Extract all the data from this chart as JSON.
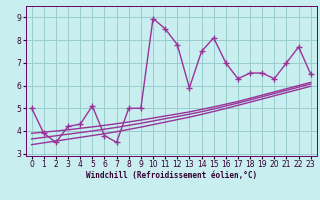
{
  "xlabel": "Windchill (Refroidissement éolien,°C)",
  "bg_color": "#c8eef0",
  "line_color": "#993399",
  "grid_color": "#99cccc",
  "x_data": [
    0,
    1,
    2,
    3,
    4,
    5,
    6,
    7,
    8,
    9,
    10,
    11,
    12,
    13,
    14,
    15,
    16,
    17,
    18,
    19,
    20,
    21,
    22,
    23
  ],
  "y_main": [
    5.0,
    3.9,
    3.5,
    4.2,
    4.3,
    5.1,
    3.8,
    3.5,
    5.0,
    5.0,
    8.95,
    8.5,
    7.8,
    5.9,
    7.5,
    8.1,
    7.0,
    6.3,
    6.55,
    6.55,
    6.3,
    7.0,
    7.7,
    6.5
  ],
  "y_line1": [
    3.9,
    3.95,
    4.0,
    4.05,
    4.12,
    4.18,
    4.25,
    4.32,
    4.4,
    4.48,
    4.57,
    4.66,
    4.75,
    4.84,
    4.95,
    5.06,
    5.18,
    5.3,
    5.44,
    5.58,
    5.72,
    5.86,
    6.0,
    6.14
  ],
  "y_line2": [
    3.65,
    3.72,
    3.79,
    3.86,
    3.93,
    4.0,
    4.08,
    4.16,
    4.25,
    4.34,
    4.44,
    4.54,
    4.64,
    4.74,
    4.85,
    4.97,
    5.1,
    5.23,
    5.37,
    5.51,
    5.65,
    5.79,
    5.93,
    6.07
  ],
  "y_line3": [
    3.4,
    3.48,
    3.56,
    3.64,
    3.72,
    3.8,
    3.88,
    3.97,
    4.07,
    4.17,
    4.28,
    4.39,
    4.5,
    4.61,
    4.73,
    4.86,
    4.99,
    5.13,
    5.27,
    5.41,
    5.55,
    5.69,
    5.83,
    5.97
  ],
  "ylim": [
    2.9,
    9.5
  ],
  "xlim": [
    -0.5,
    23.5
  ],
  "yticks": [
    3,
    4,
    5,
    6,
    7,
    8,
    9
  ],
  "xticks": [
    0,
    1,
    2,
    3,
    4,
    5,
    6,
    7,
    8,
    9,
    10,
    11,
    12,
    13,
    14,
    15,
    16,
    17,
    18,
    19,
    20,
    21,
    22,
    23
  ],
  "marker": "+",
  "markersize": 4,
  "linewidth": 1.0,
  "tick_fontsize": 5.5,
  "xlabel_fontsize": 5.5
}
